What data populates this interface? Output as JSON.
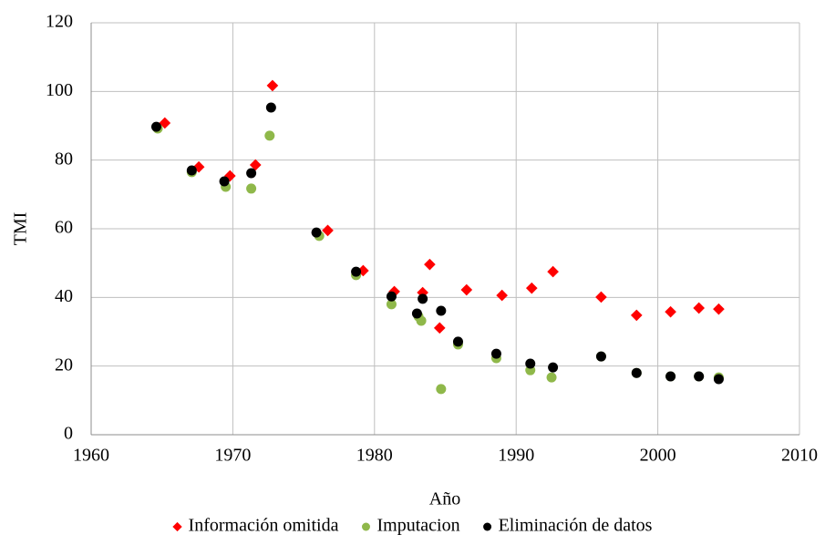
{
  "chart_data": {
    "type": "scatter",
    "x_label": "Año",
    "y_label": "TMI",
    "xlim": [
      1960,
      2010
    ],
    "xticks": [
      1960,
      1970,
      1980,
      1990,
      2000,
      2010
    ],
    "ylim": [
      0,
      120
    ],
    "yticks": [
      0,
      20,
      40,
      60,
      80,
      100,
      120
    ],
    "grid": true,
    "legend": "bottom",
    "series": [
      {
        "name": "Información omitida",
        "color": "#ff0000",
        "marker": "diamond",
        "x": [
          1965.2,
          1967.6,
          1969.8,
          1971.6,
          1972.8,
          1976.7,
          1979.2,
          1981.4,
          1983.4,
          1983.9,
          1984.6,
          1986.5,
          1989.0,
          1991.1,
          1992.6,
          1996.0,
          1998.5,
          2000.9,
          2002.9,
          2004.3
        ],
        "values": [
          90.8,
          78.0,
          75.4,
          78.6,
          101.7,
          59.5,
          47.8,
          41.7,
          41.4,
          49.6,
          31.1,
          42.2,
          40.6,
          42.7,
          47.5,
          40.1,
          34.8,
          35.8,
          36.9,
          36.6
        ]
      },
      {
        "name": "Imputacion",
        "color": "#8fb84a",
        "marker": "circle",
        "x": [
          1964.7,
          1967.1,
          1969.5,
          1971.3,
          1972.6,
          1976.1,
          1978.7,
          1981.2,
          1983.1,
          1983.3,
          1984.7,
          1985.9,
          1988.6,
          1991.0,
          1992.5,
          1996.0,
          1998.5,
          2000.9,
          2002.9,
          2004.3
        ],
        "values": [
          89.2,
          76.5,
          72.2,
          71.7,
          87.1,
          57.9,
          46.5,
          38.0,
          34.5,
          33.2,
          13.3,
          26.3,
          22.3,
          18.8,
          16.7,
          22.8,
          18.0,
          17.0,
          17.0,
          16.7
        ]
      },
      {
        "name": "Eliminación de datos",
        "color": "#000000",
        "marker": "circle",
        "x": [
          1964.6,
          1967.1,
          1969.4,
          1971.3,
          1972.7,
          1975.9,
          1978.7,
          1981.2,
          1983.0,
          1983.4,
          1984.7,
          1985.9,
          1988.6,
          1991.0,
          1992.6,
          1996.0,
          1998.5,
          2000.9,
          2002.9,
          2004.3
        ],
        "values": [
          89.7,
          77.0,
          73.8,
          76.2,
          95.3,
          58.9,
          47.5,
          40.3,
          35.3,
          39.6,
          36.1,
          27.1,
          23.6,
          20.7,
          19.6,
          22.8,
          18.0,
          17.0,
          17.0,
          16.2
        ]
      }
    ]
  }
}
